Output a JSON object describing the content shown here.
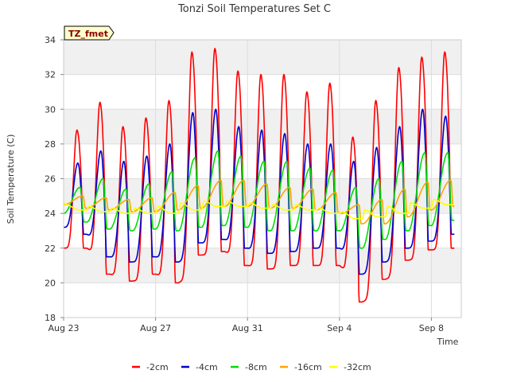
{
  "chart_data": {
    "type": "line",
    "title": "Tonzi Soil Temperatures Set C",
    "xlabel": "Time",
    "ylabel": "Soil Temperature (C)",
    "site_label": "TZ_fmet",
    "xlim": [
      0,
      17.3
    ],
    "ylim": [
      18,
      34
    ],
    "x_ticks": [
      {
        "label": "Aug 23",
        "day": 0
      },
      {
        "label": "Aug 27",
        "day": 4
      },
      {
        "label": "Aug 31",
        "day": 8
      },
      {
        "label": "Sep 4",
        "day": 12
      },
      {
        "label": "Sep 8",
        "day": 16
      }
    ],
    "y_ticks": [
      18,
      20,
      22,
      24,
      26,
      28,
      30,
      32,
      34
    ],
    "grid": true,
    "legend_position": "bottom",
    "days": [
      0,
      1,
      2,
      3,
      4,
      5,
      6,
      7,
      8,
      9,
      10,
      11,
      12,
      13,
      14,
      15,
      16,
      17
    ],
    "series": [
      {
        "name": "-2cm",
        "color": "#ff0000",
        "peak_day": 0.58,
        "sharpness": 3,
        "max": [
          28.8,
          30.4,
          29.0,
          29.5,
          30.5,
          33.3,
          33.5,
          32.2,
          32.0,
          32.0,
          31.0,
          31.5,
          28.4,
          30.5,
          32.4,
          33.0,
          33.3,
          33.5
        ],
        "min": [
          22.0,
          20.5,
          20.1,
          20.5,
          20.0,
          21.6,
          21.8,
          21.0,
          20.8,
          21.0,
          21.0,
          21.0,
          18.9,
          20.2,
          21.3,
          21.9,
          22.0,
          22.2
        ]
      },
      {
        "name": "-4cm",
        "color": "#0000cc",
        "peak_day": 0.62,
        "sharpness": 2,
        "max": [
          26.9,
          27.6,
          27.0,
          27.3,
          28.0,
          29.8,
          30.0,
          29.0,
          28.8,
          28.6,
          28.0,
          28.0,
          27.0,
          27.8,
          29.0,
          30.0,
          29.6,
          30.2
        ],
        "min": [
          22.8,
          21.5,
          21.2,
          21.5,
          21.2,
          22.3,
          22.5,
          22.0,
          21.7,
          21.8,
          22.0,
          22.0,
          20.5,
          21.2,
          22.0,
          22.4,
          22.8,
          23.0
        ],
        "start": 23.2
      },
      {
        "name": "-8cm",
        "color": "#00dd00",
        "peak_day": 0.72,
        "sharpness": 1,
        "max": [
          25.5,
          26.0,
          25.4,
          25.7,
          26.4,
          27.2,
          27.6,
          27.3,
          27.0,
          27.0,
          26.6,
          26.5,
          25.5,
          26.0,
          27.0,
          27.5,
          27.5,
          28.0
        ],
        "min": [
          23.5,
          23.1,
          23.0,
          23.1,
          23.0,
          23.2,
          23.3,
          23.2,
          23.0,
          23.0,
          23.0,
          23.0,
          22.0,
          22.5,
          23.0,
          23.3,
          23.6,
          23.8
        ],
        "start": 24.0
      },
      {
        "name": "-16cm",
        "color": "#ffa500",
        "peak_day": 0.85,
        "sharpness": 1,
        "max": [
          25.0,
          24.9,
          24.8,
          24.9,
          25.2,
          25.6,
          25.9,
          25.9,
          25.7,
          25.5,
          25.4,
          25.2,
          24.5,
          24.8,
          25.4,
          25.8,
          25.9,
          26.1
        ],
        "min": [
          24.3,
          24.2,
          24.1,
          24.1,
          24.2,
          24.3,
          24.4,
          24.4,
          24.3,
          24.3,
          24.2,
          24.0,
          23.4,
          23.4,
          23.8,
          24.2,
          24.4,
          24.6
        ],
        "start": 24.5
      },
      {
        "name": "-32cm",
        "color": "#ffff00",
        "peak_day": 0.1,
        "sharpness": 1,
        "max": [
          24.5,
          24.4,
          24.3,
          24.3,
          24.4,
          24.6,
          24.7,
          24.7,
          24.6,
          24.5,
          24.5,
          24.3,
          24.1,
          24.2,
          24.4,
          24.6,
          24.8,
          24.9
        ],
        "min": [
          24.2,
          24.1,
          24.0,
          24.0,
          24.0,
          24.2,
          24.4,
          24.4,
          24.3,
          24.2,
          24.2,
          24.0,
          23.7,
          23.8,
          24.0,
          24.3,
          24.5,
          24.6
        ],
        "start": 24.6
      }
    ]
  }
}
